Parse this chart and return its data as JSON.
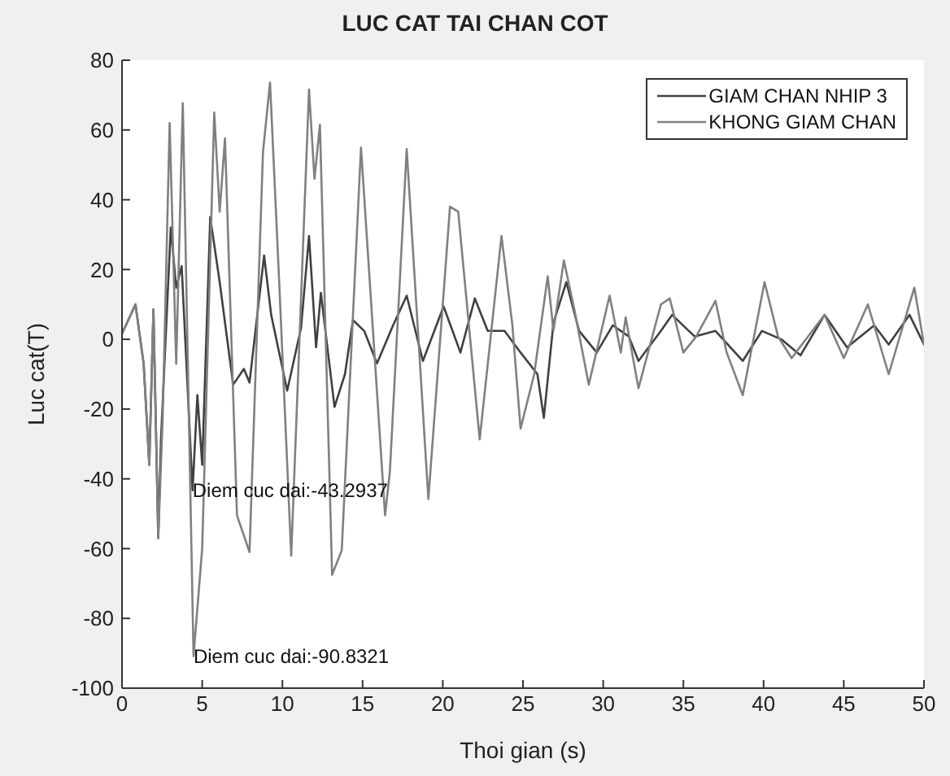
{
  "chart_data": {
    "type": "line",
    "title": "LUC CAT TAI CHAN COT",
    "xlabel": "Thoi gian (s)",
    "ylabel": "Luc cat(T)",
    "xlim": [
      0,
      50
    ],
    "xticks": [
      0,
      5,
      10,
      15,
      20,
      25,
      30,
      35,
      40,
      45,
      50
    ],
    "ylim": [
      -100,
      80
    ],
    "yticks": [
      -100,
      -80,
      -60,
      -40,
      -20,
      0,
      20,
      40,
      60,
      80
    ],
    "grid": false,
    "legend": "top right",
    "marker": "none",
    "line_style": "solid",
    "series": [
      {
        "name": "GIAM CHAN NHIP 3",
        "color": "#404040",
        "x": [
          0,
          0.84,
          1.35,
          1.7,
          1.96,
          2.26,
          2.43,
          3.04,
          3.38,
          3.72,
          4.4,
          4.7,
          5,
          5.5,
          6.09,
          6.93,
          7.6,
          7.95,
          8.86,
          9.3,
          10.3,
          11.16,
          11.66,
          12.1,
          12.4,
          13.25,
          13.9,
          14.4,
          15.1,
          15.9,
          16.9,
          17.75,
          18.76,
          20.05,
          21.1,
          22,
          22.8,
          23.85,
          24.85,
          25.9,
          26.3,
          26.9,
          27.7,
          28.5,
          29.6,
          30.6,
          31.6,
          32.2,
          33.6,
          34.3,
          35.7,
          37,
          38.7,
          39.9,
          41.1,
          42.3,
          43.8,
          45.2,
          46.9,
          47.8,
          49.1,
          50
        ],
        "values": [
          1.6,
          10,
          -7,
          -36,
          8.6,
          -57,
          -28.7,
          32,
          14.8,
          21,
          -43.3,
          -16,
          -36,
          35,
          16.4,
          -13,
          -8.5,
          -12.4,
          24,
          7,
          -14.7,
          3.2,
          29.6,
          -2.3,
          13.3,
          -19.4,
          -10,
          5.5,
          2.4,
          -6.9,
          4,
          12.5,
          -6.2,
          9.4,
          -3.8,
          11.7,
          2.4,
          2.4,
          -3.8,
          -10,
          -22.5,
          4.7,
          16.4,
          2.4,
          -3.8,
          4,
          0.8,
          -6.2,
          2.4,
          7,
          0.8,
          2.4,
          -6.2,
          2.4,
          0,
          -4.6,
          7,
          -2.3,
          4,
          -1.5,
          7,
          -1.5
        ]
      },
      {
        "name": "KHONG GIAM CHAN",
        "color": "#808080",
        "x": [
          0,
          0.84,
          1.35,
          1.7,
          1.96,
          2.26,
          2.54,
          2.97,
          3.38,
          3.79,
          4.46,
          5,
          5.75,
          6.09,
          6.42,
          7.17,
          7.95,
          8.79,
          9.23,
          9.8,
          10.55,
          11.66,
          12,
          12.34,
          13.1,
          13.7,
          14.9,
          16.4,
          16.7,
          17.75,
          19.1,
          20.45,
          20.96,
          22.3,
          23.66,
          24.34,
          24.85,
          25.7,
          26.54,
          26.9,
          27.55,
          28.2,
          29.1,
          30.4,
          31.1,
          31.4,
          32.2,
          33.6,
          34.15,
          35,
          35.8,
          37,
          37.7,
          38.7,
          40.06,
          40.9,
          41.75,
          43.8,
          45,
          46.5,
          47.8,
          49.4,
          50
        ],
        "values": [
          1.6,
          10,
          -7,
          -36,
          8.6,
          -57,
          -22,
          62,
          -7,
          67.7,
          -90.8,
          -60,
          65,
          36.6,
          57.6,
          -50.5,
          -61,
          53.7,
          73.6,
          16.4,
          -62,
          71.6,
          46,
          61.5,
          -67.5,
          -60.5,
          55,
          -50.5,
          -38,
          54.5,
          -45.8,
          38,
          36.6,
          -28.7,
          29.6,
          4,
          -25.6,
          -10,
          18,
          2.5,
          22.6,
          8.6,
          -13,
          12.5,
          -3.8,
          6.3,
          -14,
          10,
          11.7,
          -3.8,
          0.8,
          11,
          -3.8,
          -16,
          16.4,
          0.8,
          -5.4,
          7,
          -5.4,
          10,
          -10,
          14.8,
          -1.5
        ]
      }
    ],
    "annotations": [
      {
        "text": "Diem cuc dai:-43.2937",
        "x": 4.4,
        "y": -43.29
      },
      {
        "text": "Diem cuc dai:-90.8321",
        "x": 4.46,
        "y": -90.83
      }
    ]
  }
}
